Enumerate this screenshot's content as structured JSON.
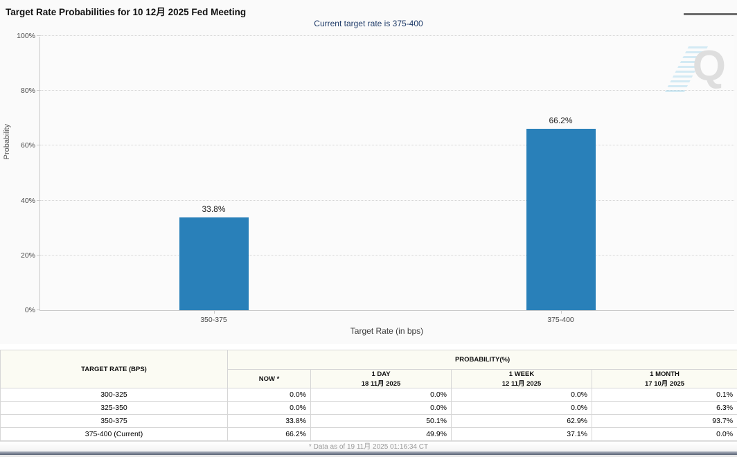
{
  "header": {
    "title": "Target Rate Probabilities for 10 12月 2025 Fed Meeting",
    "subtitle": "Current target rate is 375-400"
  },
  "chart_data": {
    "type": "bar",
    "categories": [
      "350-375",
      "375-400"
    ],
    "values": [
      33.8,
      66.2
    ],
    "value_labels": [
      "33.8%",
      "66.2%"
    ],
    "xlabel": "Target Rate (in bps)",
    "ylabel": "Probability",
    "ylim": [
      0,
      100
    ],
    "ytick_labels": [
      "0%",
      "20%",
      "40%",
      "60%",
      "80%",
      "100%"
    ],
    "ytick_values": [
      0,
      20,
      40,
      60,
      80,
      100
    ],
    "grid": "horizontal-dotted",
    "legend": "none",
    "bar_color": "#2980b9",
    "watermark_letter": "Q"
  },
  "table": {
    "col1_header": "TARGET RATE (BPS)",
    "group_header": "PROBABILITY(%)",
    "columns": [
      {
        "label": "NOW *",
        "sub": ""
      },
      {
        "label": "1 DAY",
        "sub": "18 11月 2025"
      },
      {
        "label": "1 WEEK",
        "sub": "12 11月 2025"
      },
      {
        "label": "1 MONTH",
        "sub": "17 10月 2025"
      }
    ],
    "rows": [
      {
        "rate": "300-325",
        "now": "0.0%",
        "day": "0.0%",
        "week": "0.0%",
        "month": "0.1%"
      },
      {
        "rate": "325-350",
        "now": "0.0%",
        "day": "0.0%",
        "week": "0.0%",
        "month": "6.3%"
      },
      {
        "rate": "350-375",
        "now": "33.8%",
        "day": "50.1%",
        "week": "62.9%",
        "month": "93.7%"
      },
      {
        "rate": "375-400 (Current)",
        "now": "66.2%",
        "day": "49.9%",
        "week": "37.1%",
        "month": "0.0%"
      }
    ],
    "footnote": "* Data as of 19 11月 2025 01:16:34 CT"
  },
  "colors": {
    "bar": "#2980b9",
    "subtitle_text": "#1d3a68",
    "now_column_highlight": "#fbf9da",
    "section_background": "#fafafa"
  }
}
